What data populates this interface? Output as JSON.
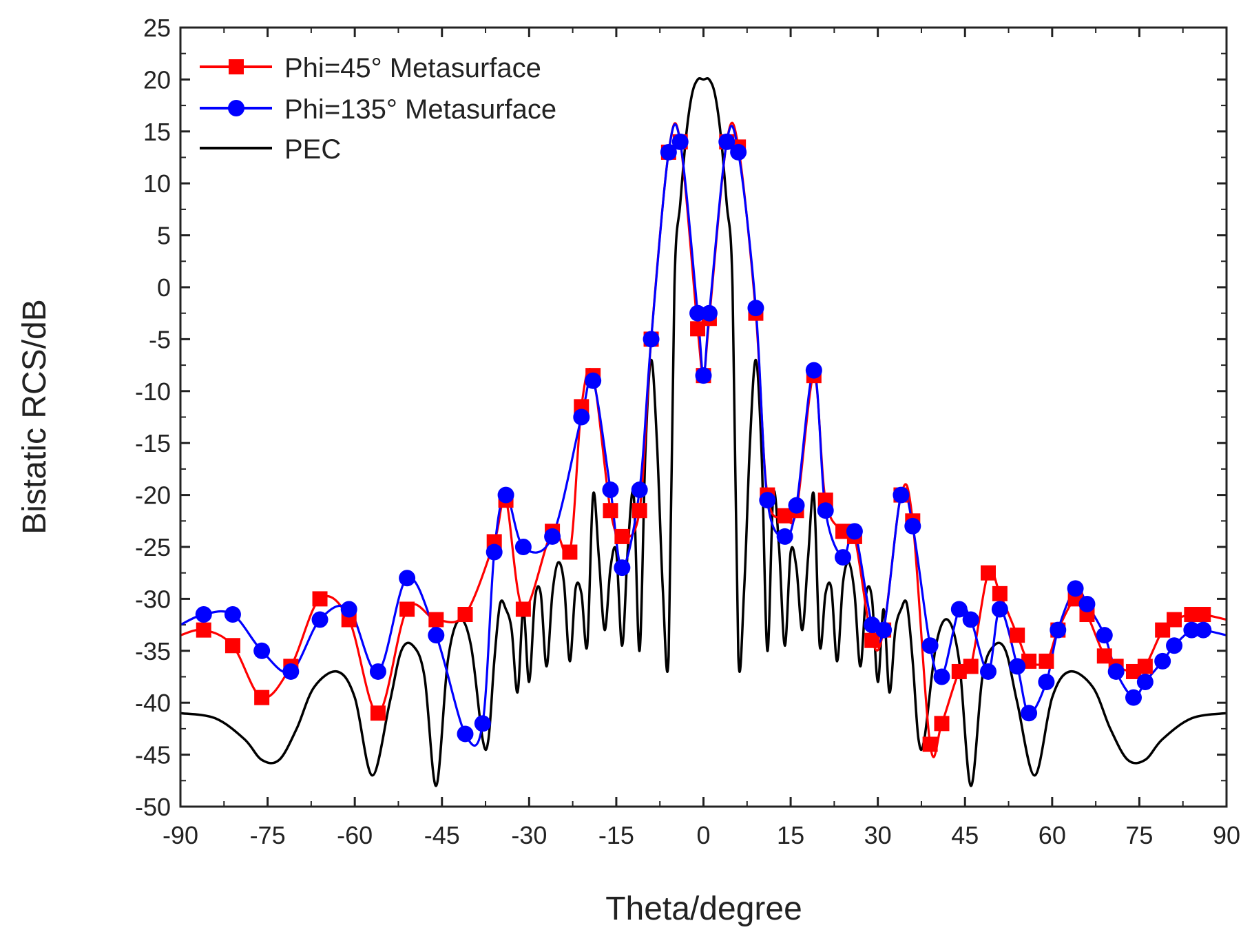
{
  "chart_data": {
    "type": "line",
    "title": "",
    "xlabel": "Theta/degree",
    "ylabel": "Bistatic RCS/dB",
    "xlim": [
      -90,
      90
    ],
    "ylim": [
      -50,
      25
    ],
    "xticks": [
      -90,
      -75,
      -60,
      -45,
      -30,
      -15,
      0,
      15,
      30,
      45,
      60,
      75,
      90
    ],
    "yticks": [
      25,
      20,
      15,
      10,
      5,
      0,
      -5,
      -10,
      -15,
      -20,
      -25,
      -30,
      -35,
      -40,
      -45,
      -50
    ],
    "grid": false,
    "legend_position": "top-left",
    "series": [
      {
        "name": "Phi=45° Metasurface",
        "color": "#ff0000",
        "marker": "square",
        "x": [
          -90,
          -86,
          -81,
          -76,
          -71,
          -66,
          -61,
          -56,
          -51,
          -46,
          -41,
          -36,
          -34,
          -31,
          -26,
          -23,
          -21,
          -19,
          -16,
          -14,
          -11,
          -9,
          -6,
          -4,
          -1,
          0,
          1,
          4,
          6,
          9,
          11,
          14,
          16,
          19,
          21,
          24,
          26,
          29,
          31,
          34,
          36,
          39,
          41,
          44,
          46,
          49,
          51,
          54,
          56,
          59,
          61,
          64,
          66,
          69,
          71,
          74,
          76,
          79,
          81,
          84,
          86,
          90
        ],
        "y": [
          -33.5,
          -33.0,
          -34.5,
          -39.5,
          -36.5,
          -30.0,
          -32.0,
          -41.0,
          -31.0,
          -32.0,
          -31.5,
          -24.5,
          -20.5,
          -31.0,
          -23.5,
          -25.5,
          -11.5,
          -8.5,
          -21.5,
          -24.0,
          -21.5,
          -5.0,
          13.0,
          14.0,
          -4.0,
          -8.5,
          -3.0,
          14.0,
          13.5,
          -2.5,
          -20.0,
          -22.0,
          -21.5,
          -8.5,
          -20.5,
          -23.5,
          -24.0,
          -34.0,
          -33.0,
          -20.0,
          -22.5,
          -44.0,
          -42.0,
          -37.0,
          -36.5,
          -27.5,
          -29.5,
          -33.5,
          -36.0,
          -36.0,
          -33.0,
          -30.0,
          -31.5,
          -35.5,
          -36.5,
          -37.0,
          -36.5,
          -33.0,
          -32.0,
          -31.5,
          -31.5,
          -32.0
        ]
      },
      {
        "name": "Phi=135° Metasurface",
        "color": "#0000ff",
        "marker": "circle",
        "x": [
          -90,
          -86,
          -81,
          -76,
          -71,
          -66,
          -61,
          -56,
          -51,
          -46,
          -41,
          -38,
          -36,
          -34,
          -31,
          -26,
          -21,
          -19,
          -16,
          -14,
          -11,
          -9,
          -6,
          -4,
          -1,
          0,
          1,
          4,
          6,
          9,
          11,
          14,
          16,
          19,
          21,
          24,
          26,
          29,
          31,
          34,
          36,
          39,
          41,
          44,
          46,
          49,
          51,
          54,
          56,
          59,
          61,
          64,
          66,
          69,
          71,
          74,
          76,
          79,
          81,
          84,
          86,
          90
        ],
        "y": [
          -32.5,
          -31.5,
          -31.5,
          -35.0,
          -37.0,
          -32.0,
          -31.0,
          -37.0,
          -28.0,
          -33.5,
          -43.0,
          -42.0,
          -25.5,
          -20.0,
          -25.0,
          -24.0,
          -12.5,
          -9.0,
          -19.5,
          -27.0,
          -19.5,
          -5.0,
          13.0,
          14.0,
          -2.5,
          -8.5,
          -2.5,
          14.0,
          13.0,
          -2.0,
          -20.5,
          -24.0,
          -21.0,
          -8.0,
          -21.5,
          -26.0,
          -23.5,
          -32.5,
          -33.0,
          -20.0,
          -23.0,
          -34.5,
          -37.5,
          -31.0,
          -32.0,
          -37.0,
          -31.0,
          -36.5,
          -41.0,
          -38.0,
          -33.0,
          -29.0,
          -30.5,
          -33.5,
          -37.0,
          -39.5,
          -38.0,
          -36.0,
          -34.5,
          -33.0,
          -33.0,
          -33.5
        ]
      },
      {
        "name": "PEC",
        "color": "#000000",
        "marker": "none",
        "x": [
          -90,
          -84,
          -79,
          -76,
          -73,
          -70,
          -67,
          -63,
          -60,
          -57,
          -54,
          -52,
          -50,
          -48,
          -46,
          -44,
          -42,
          -40,
          -38,
          -37,
          -36,
          -35,
          -34,
          -33,
          -32,
          -31,
          -30,
          -29,
          -28,
          -27,
          -26,
          -25,
          -24,
          -23,
          -22,
          -21,
          -20,
          -19,
          -18,
          -17,
          -16,
          -15,
          -14,
          -13,
          -12,
          -11,
          -10,
          -9,
          -8,
          -7,
          -6,
          -5,
          -4,
          -3,
          -2,
          -1,
          0,
          1,
          2,
          3,
          4,
          5,
          6,
          7,
          8,
          9,
          10,
          11,
          12,
          13,
          14,
          15,
          16,
          17,
          18,
          19,
          20,
          21,
          22,
          23,
          24,
          25,
          26,
          27,
          28,
          29,
          30,
          31,
          32,
          33,
          34,
          35,
          36,
          37,
          38,
          40,
          42,
          44,
          46,
          48,
          50,
          52,
          54,
          57,
          60,
          63,
          67,
          70,
          73,
          76,
          79,
          84,
          90
        ],
        "y": [
          -41.0,
          -41.5,
          -43.5,
          -45.5,
          -45.5,
          -42.5,
          -38.5,
          -37.0,
          -39.5,
          -47.0,
          -40.0,
          -35.0,
          -34.5,
          -37.5,
          -48.0,
          -36.0,
          -32.0,
          -34.5,
          -43.5,
          -43.5,
          -36.0,
          -30.5,
          -31.0,
          -33.0,
          -39.0,
          -31.0,
          -38.0,
          -30.0,
          -29.5,
          -36.5,
          -29.5,
          -26.5,
          -28.5,
          -36.0,
          -29.0,
          -29.5,
          -34.5,
          -20.0,
          -26.0,
          -33.0,
          -27.0,
          -25.5,
          -34.5,
          -25.0,
          -20.0,
          -35.0,
          -16.0,
          -7.0,
          -15.0,
          -29.0,
          -35.5,
          0.0,
          8.0,
          14.5,
          18.5,
          20.0,
          20.0,
          20.0,
          18.5,
          14.5,
          8.0,
          0.0,
          -35.5,
          -29.0,
          -15.0,
          -7.0,
          -16.0,
          -35.0,
          -20.0,
          -25.0,
          -34.5,
          -25.5,
          -27.0,
          -33.0,
          -26.0,
          -20.0,
          -34.5,
          -29.5,
          -29.0,
          -36.0,
          -28.5,
          -26.5,
          -29.5,
          -36.5,
          -29.5,
          -30.0,
          -38.0,
          -31.0,
          -39.0,
          -33.0,
          -31.0,
          -30.5,
          -36.0,
          -43.5,
          -43.5,
          -34.5,
          -32.0,
          -36.0,
          -48.0,
          -37.5,
          -34.5,
          -35.0,
          -40.0,
          -47.0,
          -39.5,
          -37.0,
          -38.5,
          -42.5,
          -45.5,
          -45.5,
          -43.5,
          -41.5,
          -41.0
        ]
      }
    ]
  }
}
